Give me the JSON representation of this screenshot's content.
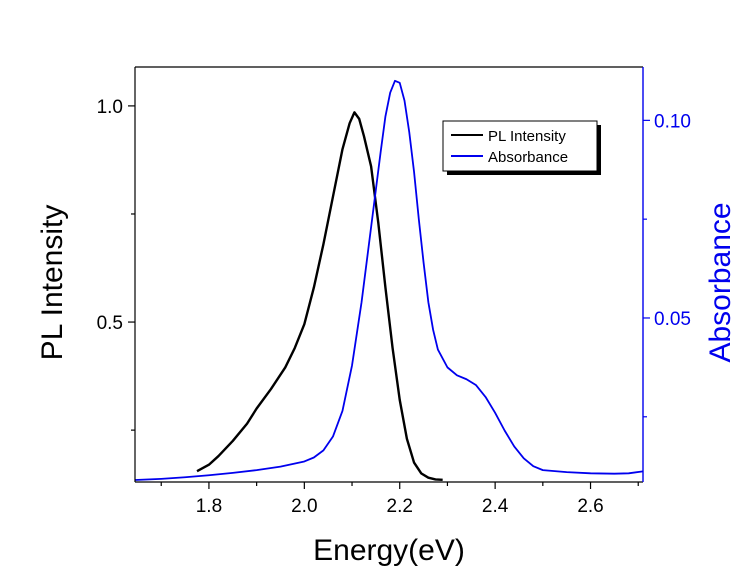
{
  "chart_data": {
    "type": "line",
    "xlabel": "Energy(eV)",
    "ylabel_left": "PL Intensity",
    "ylabel_right": "Absorbance",
    "xlim": [
      1.645,
      2.71
    ],
    "ylim_left": [
      0.13,
      1.09
    ],
    "ylim_right": [
      0.0085,
      0.1135
    ],
    "x_ticks": [
      "1.8",
      "2.0",
      "2.2",
      "2.4",
      "2.6"
    ],
    "y_left_ticks": [
      "0.5",
      "1.0"
    ],
    "y_right_ticks": [
      "0.05",
      "0.10"
    ],
    "legend_position": "top-right",
    "colors": {
      "pl": "#000000",
      "absorbance": "#0000ee",
      "axes": "#000000",
      "right_axis": "#0000ee"
    },
    "series": [
      {
        "name": "PL Intensity",
        "axis": "left",
        "x": [
          1.775,
          1.8,
          1.82,
          1.85,
          1.88,
          1.9,
          1.93,
          1.96,
          1.98,
          2.0,
          2.02,
          2.04,
          2.06,
          2.08,
          2.095,
          2.105,
          2.115,
          2.125,
          2.14,
          2.155,
          2.17,
          2.185,
          2.2,
          2.215,
          2.23,
          2.245,
          2.26,
          2.275,
          2.29
        ],
        "y": [
          0.155,
          0.17,
          0.19,
          0.225,
          0.265,
          0.3,
          0.345,
          0.395,
          0.44,
          0.495,
          0.58,
          0.68,
          0.79,
          0.9,
          0.96,
          0.985,
          0.97,
          0.93,
          0.86,
          0.73,
          0.58,
          0.44,
          0.32,
          0.23,
          0.175,
          0.15,
          0.14,
          0.136,
          0.135
        ]
      },
      {
        "name": "Absorbance",
        "axis": "right",
        "x": [
          1.645,
          1.7,
          1.75,
          1.8,
          1.85,
          1.9,
          1.95,
          2.0,
          2.02,
          2.04,
          2.06,
          2.08,
          2.1,
          2.12,
          2.14,
          2.16,
          2.17,
          2.18,
          2.19,
          2.2,
          2.21,
          2.22,
          2.23,
          2.24,
          2.25,
          2.26,
          2.27,
          2.28,
          2.3,
          2.32,
          2.34,
          2.36,
          2.38,
          2.4,
          2.42,
          2.44,
          2.46,
          2.48,
          2.5,
          2.55,
          2.6,
          2.65,
          2.68,
          2.71
        ],
        "y": [
          0.009,
          0.0093,
          0.0097,
          0.0102,
          0.0108,
          0.0115,
          0.0124,
          0.0137,
          0.0147,
          0.0165,
          0.02,
          0.0265,
          0.038,
          0.054,
          0.073,
          0.092,
          0.101,
          0.107,
          0.11,
          0.1095,
          0.105,
          0.097,
          0.087,
          0.075,
          0.064,
          0.054,
          0.047,
          0.042,
          0.0375,
          0.0355,
          0.0345,
          0.033,
          0.03,
          0.026,
          0.0215,
          0.0175,
          0.0145,
          0.0125,
          0.0115,
          0.011,
          0.0107,
          0.0106,
          0.0107,
          0.0112
        ]
      }
    ]
  }
}
